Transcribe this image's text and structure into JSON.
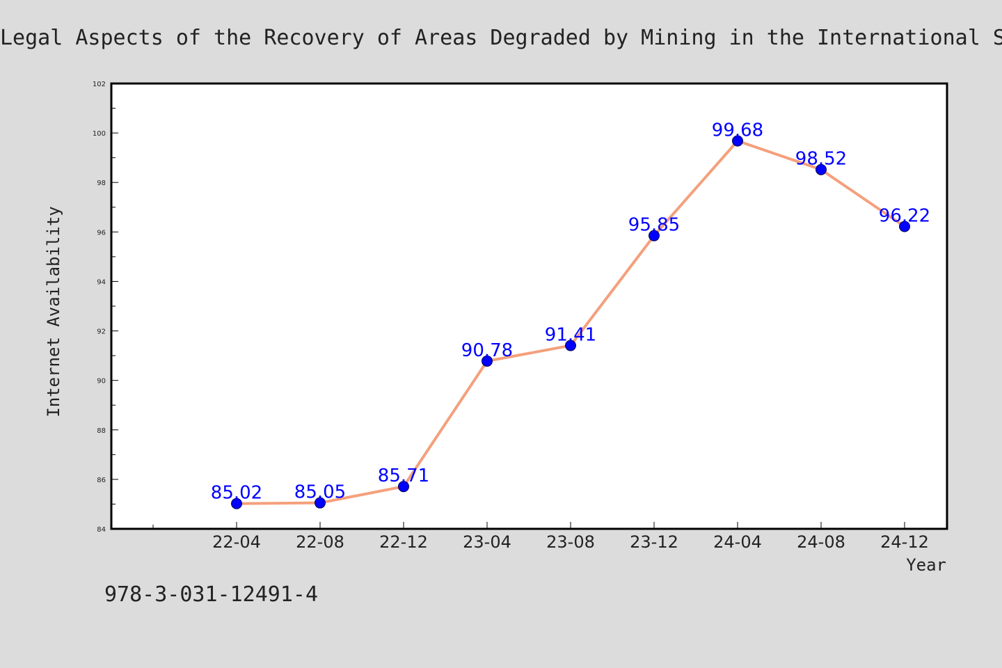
{
  "title": "Legal Aspects of the Recovery of Areas Degraded by Mining in the International S",
  "footer": "978-3-031-12491-4",
  "colors": {
    "background": "#dcdcdc",
    "plot_background": "#ffffff",
    "line": "#f4a07c",
    "marker": "#0000ff",
    "data_label": "#0000ff"
  },
  "chart_data": {
    "type": "line",
    "title": "Legal Aspects of the Recovery of Areas Degraded by Mining in the International S",
    "xlabel": "Year",
    "ylabel": "Internet Availability",
    "categories": [
      "22-04",
      "22-08",
      "22-12",
      "23-04",
      "23-08",
      "23-12",
      "24-04",
      "24-08",
      "24-12"
    ],
    "values": [
      85.02,
      85.05,
      85.71,
      90.78,
      91.41,
      95.85,
      99.68,
      98.52,
      96.22
    ],
    "value_labels": [
      "85.02",
      "85.05",
      "85.71",
      "90.78",
      "91.41",
      "95.85",
      "99.68",
      "98.52",
      "96.22"
    ],
    "ylim": [
      84,
      102
    ],
    "yticks": [
      "84",
      "86",
      "88",
      "90",
      "92",
      "94",
      "96",
      "98",
      "100",
      "102"
    ],
    "grid": false,
    "legend": "none"
  }
}
